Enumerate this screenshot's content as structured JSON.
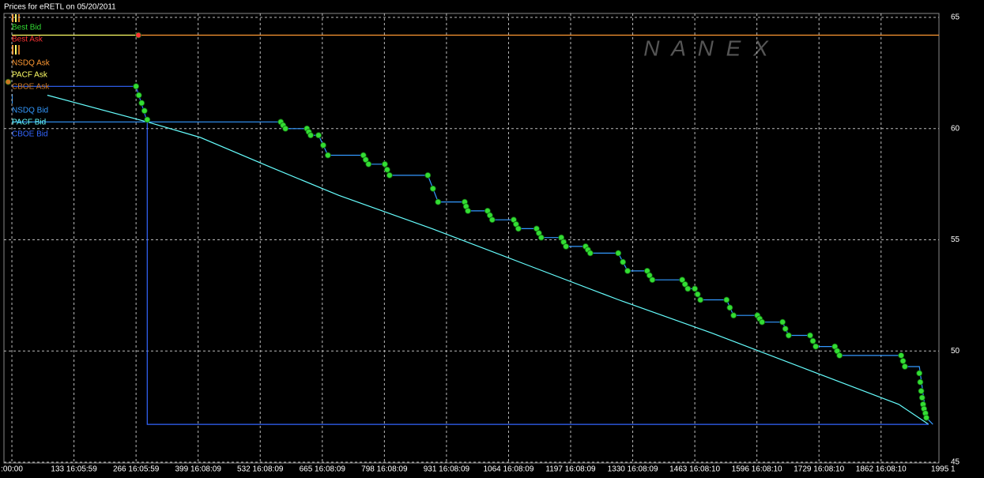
{
  "chart_data": {
    "type": "line",
    "title": "Prices for  eRETL  on  05/20/2011",
    "watermark": "N A N E X",
    "background": "#000000",
    "grid": true,
    "legend": "top-left",
    "xlim": [
      -17,
      1986
    ],
    "ylim": [
      45,
      65
    ],
    "yticks": [
      45,
      50,
      55,
      60,
      65
    ],
    "xticks": [
      {
        "value": 0,
        "label": ":00:00"
      },
      {
        "value": 133,
        "label": "133 16:05:59"
      },
      {
        "value": 266,
        "label": "266 16:05:59"
      },
      {
        "value": 399,
        "label": "399 16:08:09"
      },
      {
        "value": 532,
        "label": "532 16:08:09"
      },
      {
        "value": 665,
        "label": "665 16:08:09"
      },
      {
        "value": 798,
        "label": "798 16:08:09"
      },
      {
        "value": 931,
        "label": "931 16:08:09"
      },
      {
        "value": 1064,
        "label": "1064 16:08:09"
      },
      {
        "value": 1197,
        "label": "1197 16:08:09"
      },
      {
        "value": 1330,
        "label": "1330 16:08:09"
      },
      {
        "value": 1463,
        "label": "1463 16:08:10"
      },
      {
        "value": 1596,
        "label": "1596 16:08:10"
      },
      {
        "value": 1729,
        "label": "1729 16:08:10"
      },
      {
        "value": 1862,
        "label": "1862 16:08:10"
      },
      {
        "value": 1995,
        "label": "1995 1"
      }
    ],
    "series": [
      {
        "name": "Best Bid",
        "color": "#33dd33",
        "style": "points",
        "x": [
          266,
          272,
          278,
          284,
          290,
          576,
          581,
          586,
          632,
          636,
          640,
          657,
          667,
          677,
          753,
          758,
          764,
          799,
          804,
          809,
          891,
          902,
          913,
          970,
          973,
          977,
          1019,
          1024,
          1029,
          1075,
          1080,
          1085,
          1124,
          1129,
          1134,
          1177,
          1182,
          1187,
          1229,
          1234,
          1239,
          1299,
          1309,
          1319,
          1361,
          1366,
          1372,
          1436,
          1442,
          1448,
          1463,
          1469,
          1475,
          1531,
          1538,
          1546,
          1597,
          1602,
          1607,
          1651,
          1657,
          1664,
          1710,
          1716,
          1722,
          1763,
          1768,
          1773,
          1905,
          1909,
          1913,
          1944,
          1946,
          1948,
          1950,
          1952,
          1954,
          1957,
          1959
        ],
        "values": [
          61.9,
          61.5,
          61.15,
          60.8,
          60.4,
          60.3,
          60.15,
          60.0,
          60.0,
          59.85,
          59.7,
          59.7,
          59.25,
          58.8,
          58.8,
          58.6,
          58.4,
          58.4,
          58.15,
          57.9,
          57.9,
          57.3,
          56.7,
          56.7,
          56.5,
          56.3,
          56.3,
          56.1,
          55.9,
          55.9,
          55.7,
          55.5,
          55.5,
          55.3,
          55.1,
          55.1,
          54.9,
          54.7,
          54.7,
          54.55,
          54.4,
          54.4,
          54.0,
          53.6,
          53.6,
          53.4,
          53.2,
          53.2,
          53.0,
          52.8,
          52.8,
          52.55,
          52.3,
          52.3,
          51.95,
          51.6,
          51.6,
          51.45,
          51.3,
          51.3,
          51.0,
          50.7,
          50.7,
          50.45,
          50.2,
          50.2,
          50.0,
          49.8,
          49.8,
          49.55,
          49.3,
          49.0,
          48.6,
          48.2,
          47.9,
          47.6,
          47.4,
          47.2,
          47.0
        ]
      },
      {
        "name": "Best Ask",
        "color": "#ff3333",
        "style": "points",
        "x": [
          271
        ],
        "values": [
          64.2
        ]
      },
      {
        "name": "NSDQ Ask",
        "color": "#ff9933",
        "style": "line",
        "x": [
          271,
          1986
        ],
        "values": [
          64.2,
          64.2
        ]
      },
      {
        "name": "PACF Ask",
        "color": "#ffff66",
        "style": "line",
        "x": [
          0,
          271
        ],
        "values": [
          64.2,
          64.2
        ]
      },
      {
        "name": "CBOE Ask",
        "color": "#cc7722",
        "style": "points",
        "x": [
          -8
        ],
        "values": [
          62.1
        ]
      },
      {
        "name": "NSDQ Bid",
        "color": "#3399ff",
        "style": "line",
        "x": [
          0,
          576,
          586,
          632,
          640,
          657,
          677,
          753,
          764,
          799,
          809,
          891,
          913,
          970,
          977,
          1019,
          1029,
          1075,
          1085,
          1124,
          1134,
          1177,
          1187,
          1229,
          1239,
          1299,
          1319,
          1361,
          1372,
          1436,
          1448,
          1463,
          1475,
          1531,
          1546,
          1597,
          1607,
          1651,
          1664,
          1710,
          1722,
          1763,
          1773,
          1905,
          1913,
          1944,
          1959,
          1973
        ],
        "values": [
          60.3,
          60.3,
          60.0,
          60.0,
          59.7,
          59.7,
          58.8,
          58.8,
          58.4,
          58.4,
          57.9,
          57.9,
          56.7,
          56.7,
          56.3,
          56.3,
          55.9,
          55.9,
          55.5,
          55.5,
          55.1,
          55.1,
          54.7,
          54.7,
          54.4,
          54.4,
          53.6,
          53.6,
          53.2,
          53.2,
          52.8,
          52.8,
          52.3,
          52.3,
          51.6,
          51.6,
          51.3,
          51.3,
          50.7,
          50.7,
          50.2,
          50.2,
          49.8,
          49.8,
          49.3,
          49.3,
          47.0,
          46.7
        ]
      },
      {
        "name": "PACF Bid",
        "color": "#66ffff",
        "style": "line",
        "x": [
          76,
          290,
          404,
          550,
          700,
          900,
          1100,
          1300,
          1500,
          1700,
          1900,
          1964
        ],
        "values": [
          61.5,
          60.3,
          59.6,
          58.3,
          57.0,
          55.5,
          53.9,
          52.3,
          50.8,
          49.2,
          47.6,
          46.7
        ]
      },
      {
        "name": "CBOE Bid",
        "color": "#3366ff",
        "style": "line",
        "x": [
          0,
          266,
          290,
          290,
          1964
        ],
        "values": [
          61.9,
          61.9,
          60.3,
          46.7,
          46.7
        ]
      }
    ]
  }
}
